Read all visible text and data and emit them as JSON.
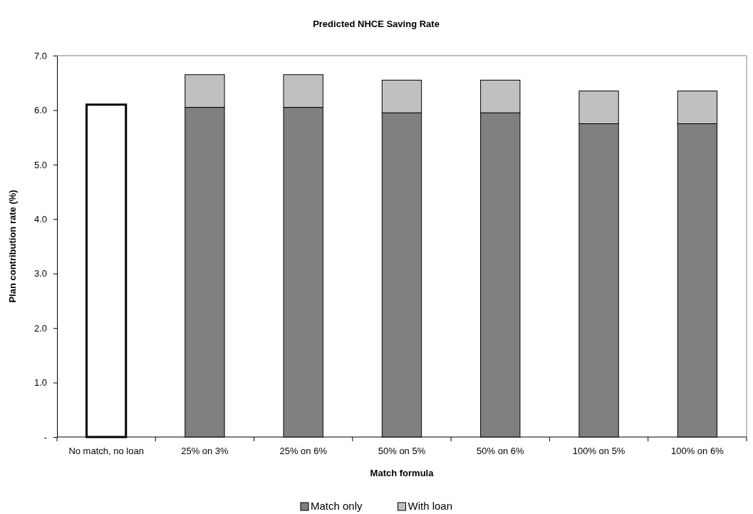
{
  "chart_data": {
    "type": "bar",
    "title": "Predicted NHCE Saving Rate",
    "xlabel": "Match formula",
    "ylabel": "Plan contribution rate (%)",
    "categories": [
      "No match, no loan",
      "25% on 3%",
      "25% on 6%",
      "50% on 5%",
      "50% on 6%",
      "100% on 5%",
      "100% on 6%"
    ],
    "stacked": true,
    "series": [
      {
        "color": "#ffffff",
        "values": [
          6.1,
          null,
          null,
          null,
          null,
          null,
          null
        ]
      },
      {
        "name": "Match only",
        "color": "#808080",
        "values": [
          null,
          6.05,
          6.05,
          5.95,
          5.95,
          5.75,
          5.75
        ]
      },
      {
        "name": "With loan",
        "color": "#c0c0c0",
        "values": [
          null,
          0.6,
          0.6,
          0.6,
          0.6,
          0.6,
          0.6
        ]
      }
    ],
    "ylim": [
      0,
      7
    ],
    "yticks": [
      {
        "value": 0,
        "label": "-"
      },
      {
        "value": 1,
        "label": "1.0"
      },
      {
        "value": 2,
        "label": "2.0"
      },
      {
        "value": 3,
        "label": "3.0"
      },
      {
        "value": 4,
        "label": "4.0"
      },
      {
        "value": 5,
        "label": "5.0"
      },
      {
        "value": 6,
        "label": "6.0"
      },
      {
        "value": 7,
        "label": "7.0"
      }
    ],
    "grid": false,
    "legend": "bottom"
  }
}
